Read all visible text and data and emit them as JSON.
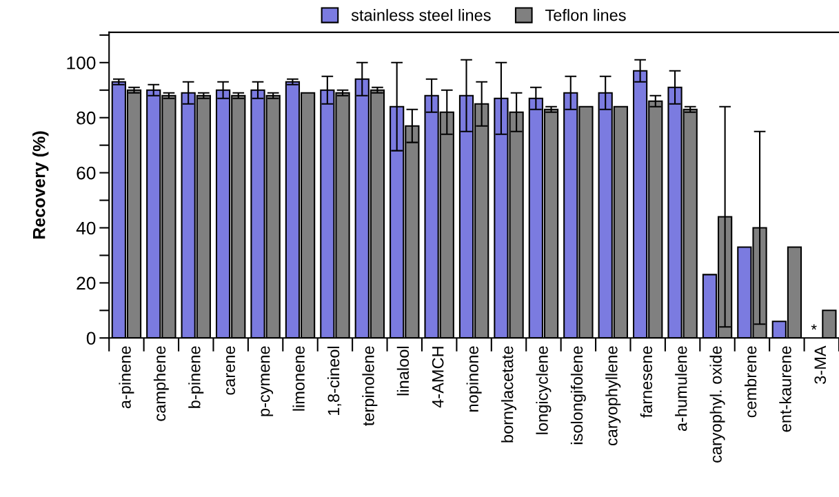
{
  "chart_data": {
    "type": "bar",
    "ylabel": "Recovery (%)",
    "categories": [
      "a-pinene",
      "camphene",
      "b-pinene",
      "carene",
      "p-cymene",
      "limonene",
      "1,8-cineol",
      "terpinolene",
      "linalool",
      "4-AMCH",
      "nopinone",
      "bornylacetate",
      "longicyclene",
      "isolongifolene",
      "caryophyllene",
      "farnesene",
      "a-humulene",
      "caryophyl. oxide",
      "cembrene",
      "ent-kaurene",
      "3-MA"
    ],
    "series": [
      {
        "name": "stainless steel lines",
        "color": "#7b7be0",
        "values": [
          93,
          90,
          89,
          90,
          90,
          93,
          90,
          94,
          84,
          88,
          88,
          87,
          87,
          89,
          89,
          97,
          91,
          23,
          33,
          6,
          null
        ],
        "errors": [
          1,
          2,
          4,
          3,
          3,
          1,
          5,
          6,
          16,
          6,
          13,
          13,
          4,
          6,
          6,
          4,
          6,
          null,
          null,
          null,
          null
        ]
      },
      {
        "name": "Teflon lines",
        "color": "#808080",
        "values": [
          90,
          88,
          88,
          88,
          88,
          89,
          89,
          90,
          77,
          82,
          85,
          82,
          83,
          84,
          84,
          86,
          83,
          44,
          40,
          33,
          10
        ],
        "errors": [
          1,
          1,
          1,
          1,
          1,
          null,
          1,
          1,
          6,
          8,
          8,
          7,
          1,
          null,
          null,
          2,
          1,
          40,
          35,
          null,
          null
        ]
      }
    ],
    "annotations": [
      {
        "text": "*",
        "x": "3-MA",
        "y": 0
      }
    ],
    "ylim": [
      0,
      111
    ],
    "yticks": [
      0,
      {
        "value": 10,
        "label": null
      },
      20,
      {
        "value": 30,
        "label": null
      },
      40,
      {
        "value": 50,
        "label": null
      },
      60,
      {
        "value": 70,
        "label": null
      },
      80,
      {
        "value": 90,
        "label": null
      },
      100,
      {
        "value": 110,
        "label": null
      }
    ],
    "legend": "top",
    "grid": false
  }
}
